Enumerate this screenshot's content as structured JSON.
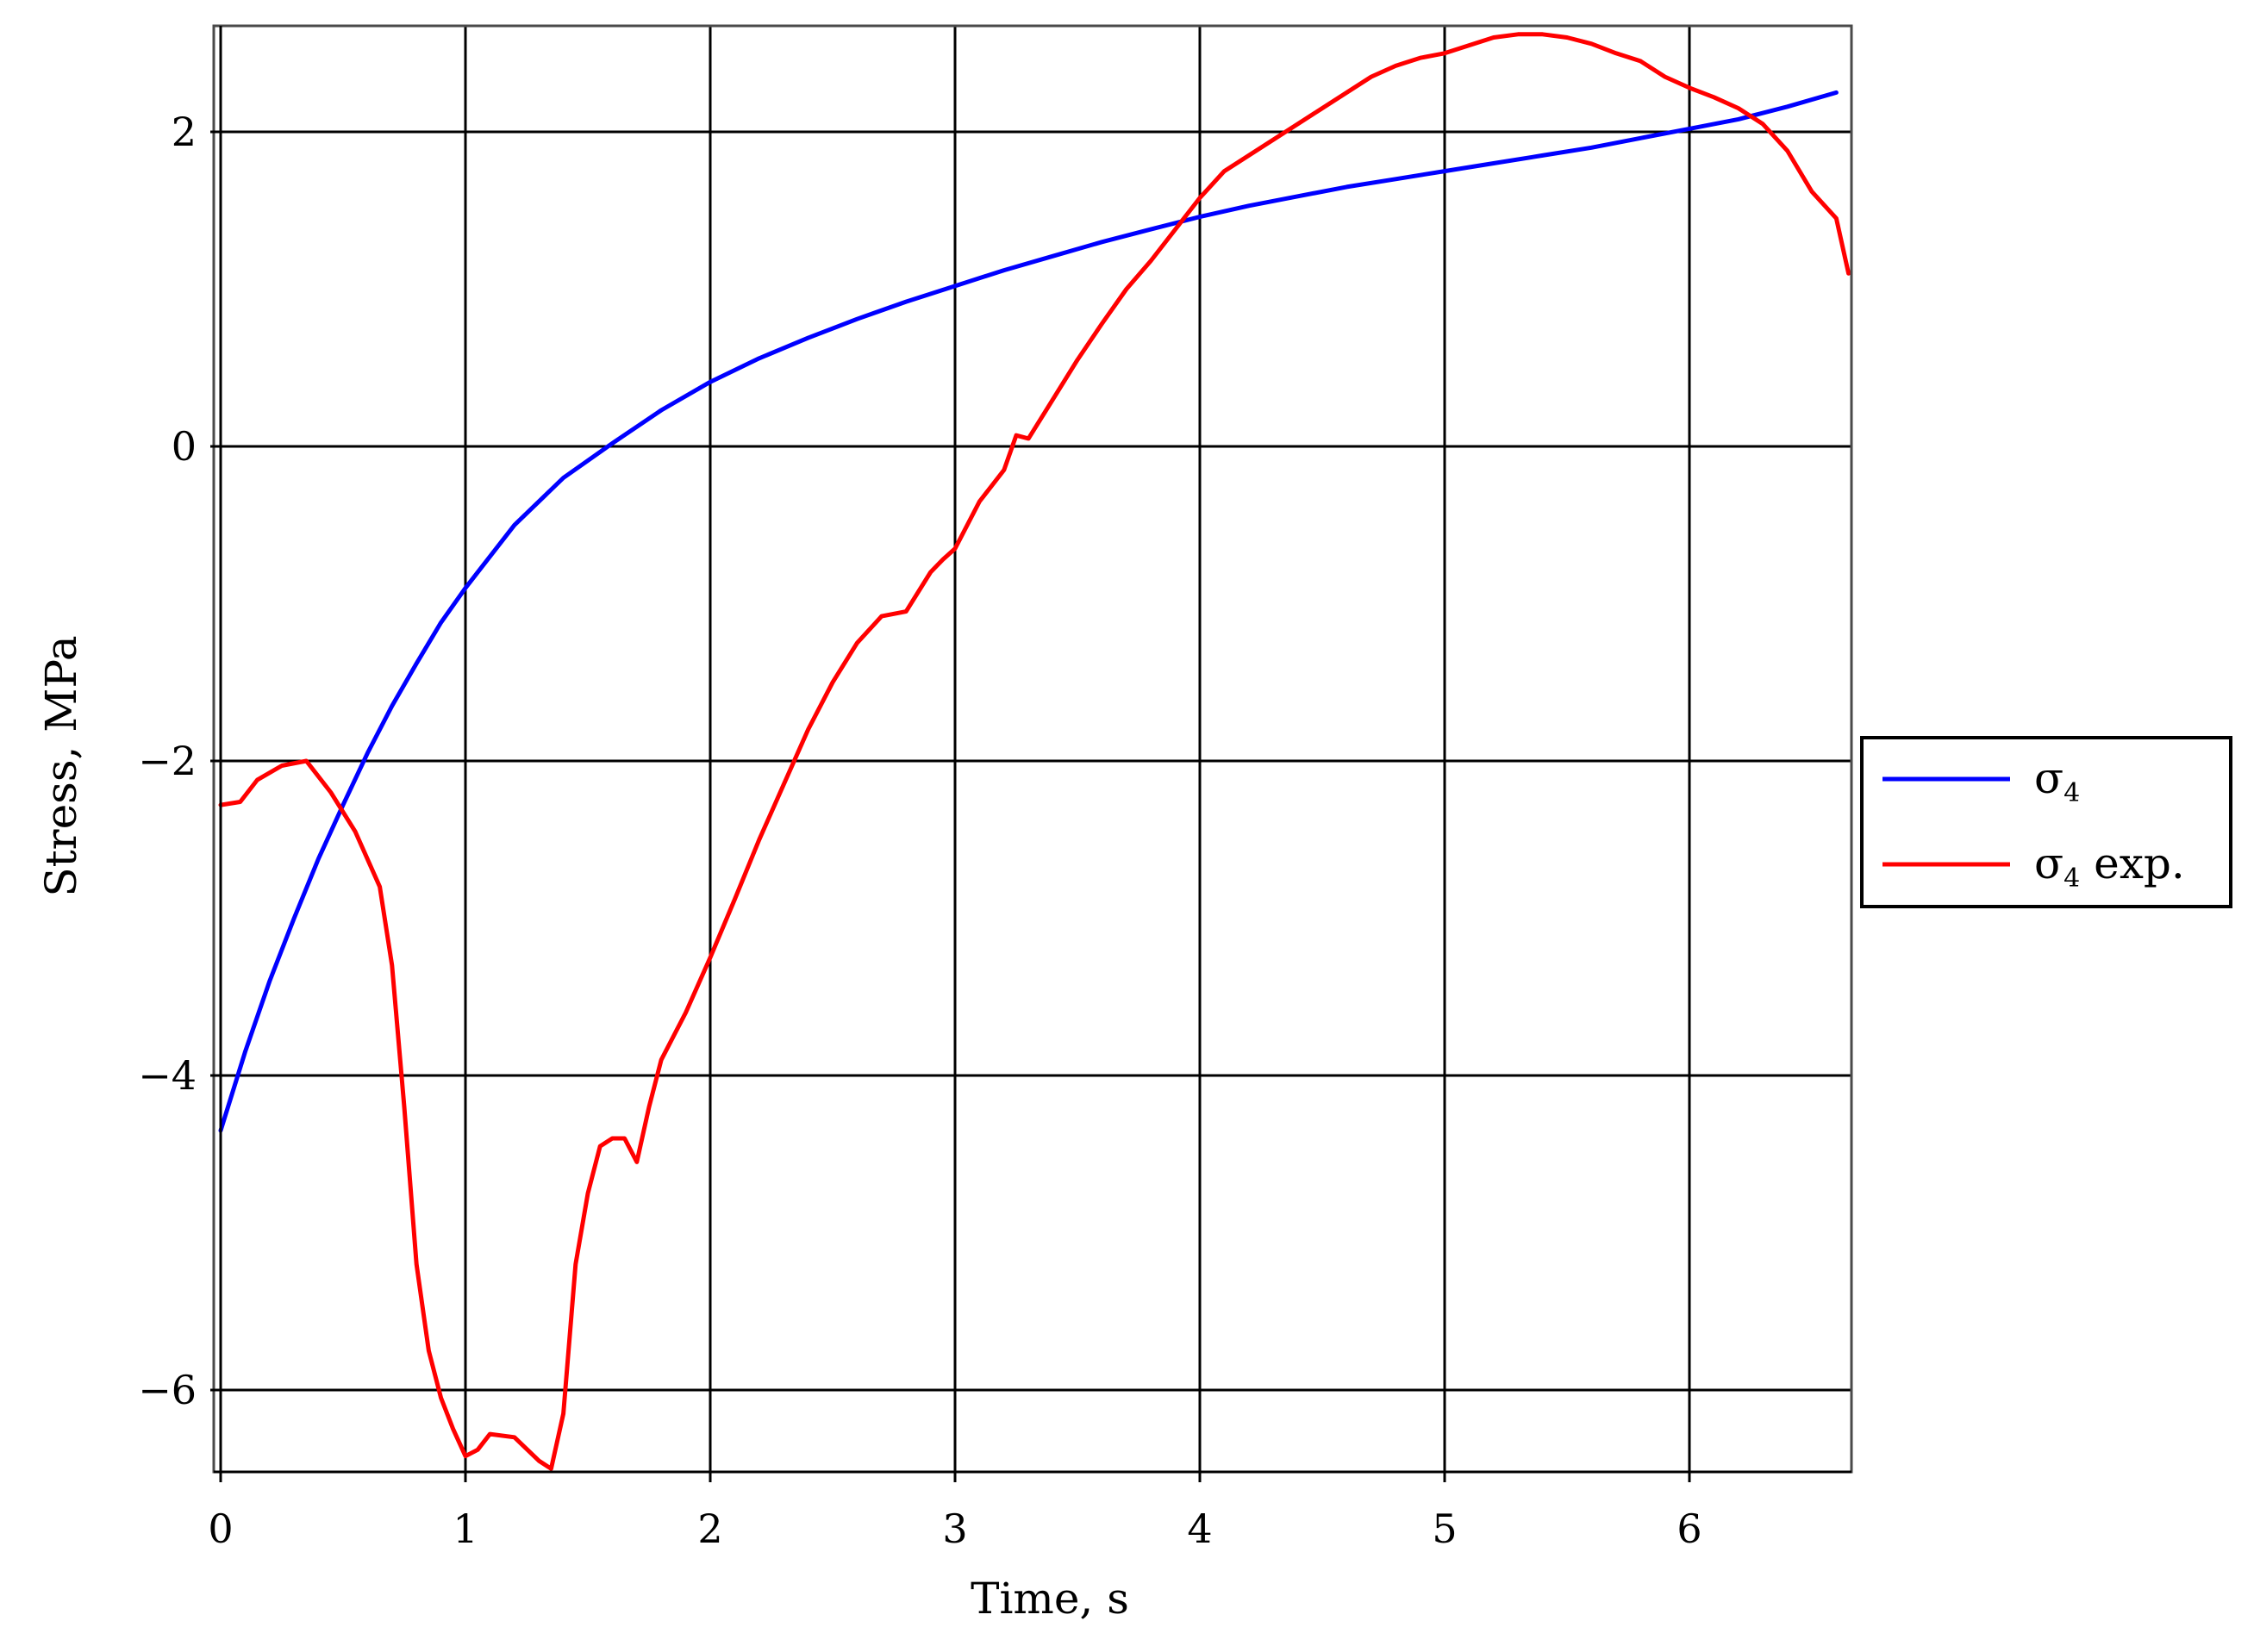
{
  "chart_data": {
    "type": "line",
    "xlabel": "Time, s",
    "ylabel": "Stress, MPa",
    "xlim": [
      0,
      6.65
    ],
    "ylim": [
      -6.5,
      2.7
    ],
    "xticks": [
      0,
      1,
      2,
      3,
      4,
      5,
      6
    ],
    "yticks": [
      -6,
      -4,
      -2,
      0,
      2
    ],
    "xtick_labels": [
      "0",
      "1",
      "2",
      "3",
      "4",
      "5",
      "6"
    ],
    "ytick_labels": [
      "−6",
      "−4",
      "−2",
      "0",
      "2"
    ],
    "grid": true,
    "legend_position": "right",
    "series": [
      {
        "name": "σ4",
        "name_base": "σ",
        "name_sub": "4",
        "name_suffix": "",
        "color": "#0000ff",
        "x": [
          0,
          0.1,
          0.2,
          0.3,
          0.4,
          0.5,
          0.6,
          0.7,
          0.8,
          0.9,
          1.0,
          1.2,
          1.4,
          1.6,
          1.8,
          2.0,
          2.2,
          2.4,
          2.6,
          2.8,
          3.0,
          3.2,
          3.4,
          3.6,
          3.8,
          4.0,
          4.2,
          4.4,
          4.6,
          4.8,
          5.0,
          5.2,
          5.4,
          5.6,
          5.8,
          6.0,
          6.2,
          6.4,
          6.6
        ],
        "y": [
          -4.35,
          -3.85,
          -3.4,
          -3.0,
          -2.62,
          -2.28,
          -1.95,
          -1.65,
          -1.38,
          -1.12,
          -0.9,
          -0.5,
          -0.2,
          0.02,
          0.23,
          0.41,
          0.56,
          0.69,
          0.81,
          0.92,
          1.02,
          1.12,
          1.21,
          1.3,
          1.38,
          1.46,
          1.53,
          1.59,
          1.65,
          1.7,
          1.75,
          1.8,
          1.85,
          1.9,
          1.96,
          2.02,
          2.08,
          2.16,
          2.25
        ]
      },
      {
        "name": "σ4 exp.",
        "name_base": "σ",
        "name_sub": "4",
        "name_suffix": " exp.",
        "color": "#ff0000",
        "x": [
          0,
          0.08,
          0.15,
          0.25,
          0.35,
          0.45,
          0.55,
          0.65,
          0.7,
          0.75,
          0.8,
          0.85,
          0.9,
          0.95,
          1.0,
          1.05,
          1.1,
          1.2,
          1.3,
          1.35,
          1.4,
          1.45,
          1.5,
          1.55,
          1.6,
          1.65,
          1.7,
          1.75,
          1.8,
          1.85,
          1.9,
          2.0,
          2.1,
          2.2,
          2.3,
          2.4,
          2.5,
          2.6,
          2.7,
          2.8,
          2.9,
          2.95,
          3.0,
          3.1,
          3.2,
          3.25,
          3.3,
          3.4,
          3.5,
          3.6,
          3.7,
          3.8,
          3.9,
          4.0,
          4.1,
          4.2,
          4.3,
          4.4,
          4.5,
          4.6,
          4.7,
          4.8,
          4.9,
          5.0,
          5.1,
          5.2,
          5.3,
          5.4,
          5.5,
          5.6,
          5.7,
          5.8,
          5.9,
          6.0,
          6.1,
          6.2,
          6.3,
          6.4,
          6.5,
          6.6,
          6.65
        ],
        "y": [
          -2.28,
          -2.26,
          -2.12,
          -2.03,
          -2.0,
          -2.2,
          -2.45,
          -2.8,
          -3.3,
          -4.2,
          -5.2,
          -5.75,
          -6.05,
          -6.25,
          -6.42,
          -6.38,
          -6.28,
          -6.3,
          -6.45,
          -6.5,
          -6.15,
          -5.2,
          -4.75,
          -4.45,
          -4.4,
          -4.4,
          -4.55,
          -4.2,
          -3.9,
          -3.75,
          -3.6,
          -3.25,
          -2.88,
          -2.5,
          -2.15,
          -1.8,
          -1.5,
          -1.25,
          -1.08,
          -1.05,
          -0.8,
          -0.72,
          -0.65,
          -0.35,
          -0.15,
          0.07,
          0.05,
          0.3,
          0.55,
          0.78,
          1.0,
          1.18,
          1.38,
          1.58,
          1.75,
          1.85,
          1.95,
          2.05,
          2.15,
          2.25,
          2.35,
          2.42,
          2.47,
          2.5,
          2.55,
          2.6,
          2.62,
          2.62,
          2.6,
          2.56,
          2.5,
          2.45,
          2.35,
          2.28,
          2.22,
          2.15,
          2.05,
          1.88,
          1.62,
          1.45,
          1.1
        ]
      }
    ]
  }
}
